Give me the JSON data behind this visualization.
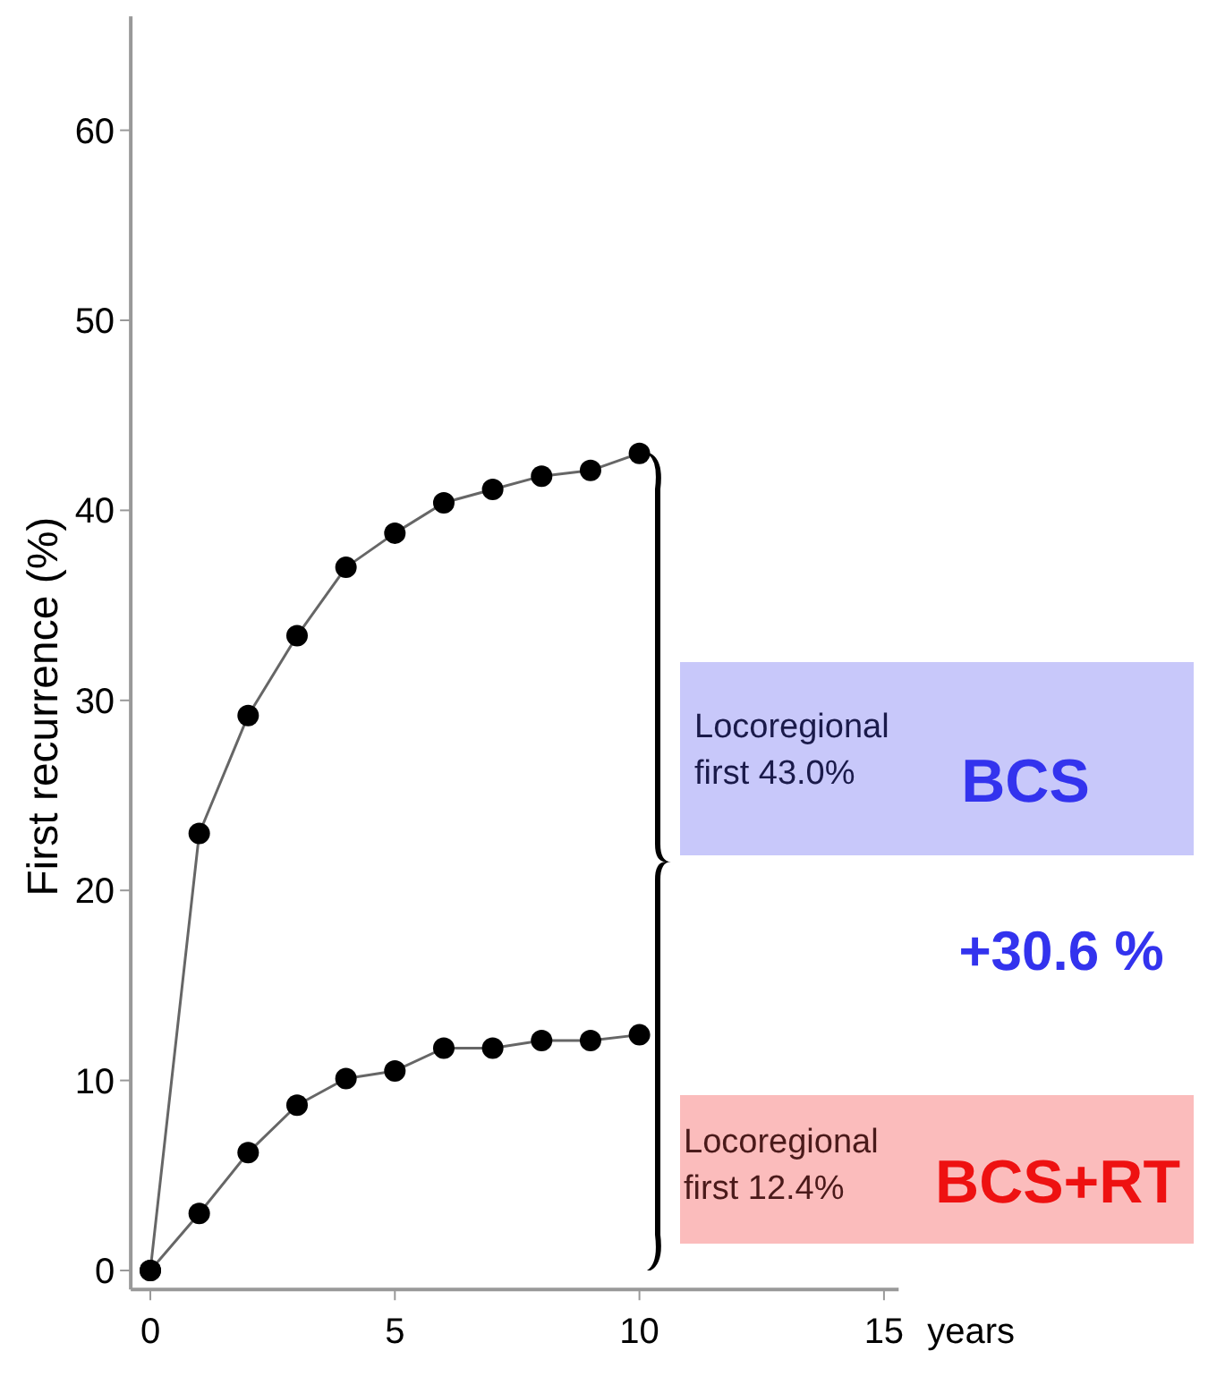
{
  "chart_data": {
    "type": "line",
    "ylabel": "First recurrence (%)",
    "xlabel": "years",
    "x": [
      0,
      1,
      2,
      3,
      4,
      5,
      6,
      7,
      8,
      9,
      10
    ],
    "series": [
      {
        "color": "#000000",
        "values": [
          0,
          23.0,
          29.2,
          33.4,
          37.0,
          38.8,
          40.4,
          41.1,
          41.8,
          42.1,
          43.0
        ]
      },
      {
        "color": "#000000",
        "values": [
          0,
          3.0,
          6.2,
          8.7,
          10.1,
          10.5,
          11.7,
          11.7,
          12.1,
          12.1,
          12.4
        ]
      }
    ],
    "xlim": [
      -0.4,
      15.3
    ],
    "xticks": [
      0,
      5,
      10,
      15
    ],
    "ylim": [
      -1,
      66
    ],
    "yticks": [
      0,
      10,
      20,
      30,
      40,
      50,
      60
    ],
    "grid": false,
    "marker": "circle",
    "line_style": "solid",
    "annotations": [
      "Locoregional first 43.0%",
      "BCS",
      "+30.6 %",
      "Locoregional first 12.4%",
      "BCS+RT"
    ]
  }
}
